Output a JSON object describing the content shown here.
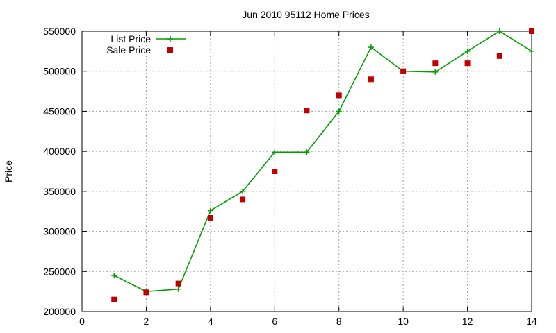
{
  "chart_data": {
    "type": "line",
    "title": "Jun 2010 95112 Home Prices",
    "xlabel": "",
    "ylabel": "Price",
    "xlim": [
      0,
      14
    ],
    "ylim": [
      200000,
      550000
    ],
    "xticks": [
      "0",
      "2",
      "4",
      "6",
      "8",
      "10",
      "12",
      "14"
    ],
    "yticks": [
      "200000",
      "250000",
      "300000",
      "350000",
      "400000",
      "450000",
      "500000",
      "550000"
    ],
    "grid": true,
    "legend_position": "top-left",
    "series": [
      {
        "name": "List Price",
        "style": "line-with-plus-markers",
        "color": "#00a000",
        "x": [
          1,
          2,
          3,
          4,
          5,
          6,
          7,
          8,
          9,
          10,
          11,
          12,
          13,
          14
        ],
        "y": [
          245000,
          225000,
          228000,
          326000,
          350000,
          399000,
          399000,
          450000,
          530000,
          500000,
          499000,
          525000,
          550000,
          525000
        ]
      },
      {
        "name": "Sale Price",
        "style": "square-markers",
        "color": "#c00000",
        "x": [
          1,
          2,
          3,
          4,
          5,
          6,
          7,
          8,
          9,
          10,
          11,
          12,
          13,
          14
        ],
        "y": [
          215000,
          224000,
          235000,
          317000,
          340000,
          375000,
          451000,
          470000,
          490000,
          500000,
          510000,
          510000,
          519000,
          550000
        ]
      }
    ]
  }
}
